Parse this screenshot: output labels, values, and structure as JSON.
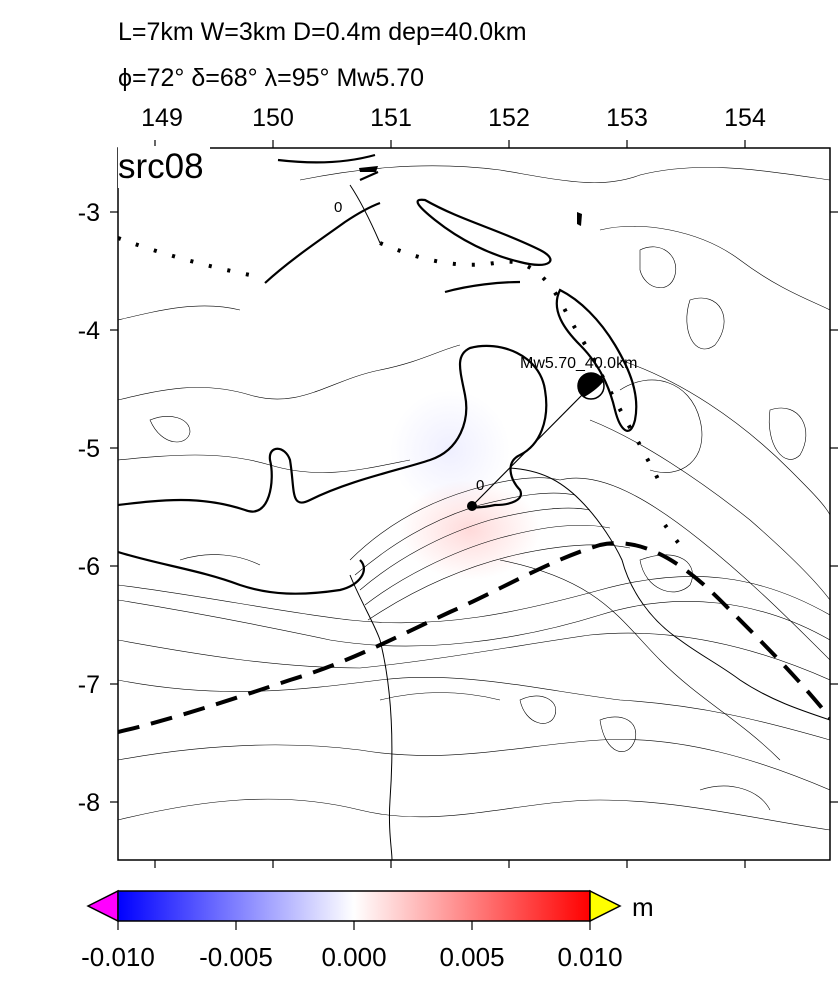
{
  "title": {
    "line1": "L=7km W=3km D=0.4m dep=40.0km",
    "line2": "ϕ=72° δ=68° λ=95° Mw5.70"
  },
  "map": {
    "panel_label": "src08",
    "lon_ticks": [
      "149",
      "150",
      "151",
      "152",
      "153",
      "154"
    ],
    "lat_ticks": [
      "-3",
      "-4",
      "-5",
      "-6",
      "-7",
      "-8"
    ],
    "lon_range": [
      148.7,
      154.7
    ],
    "lat_range": [
      -8.5,
      -2.6
    ],
    "contour_labels": [
      "0",
      "0"
    ],
    "event": {
      "label": "Mw5.70_40.0km",
      "lon": 152.7,
      "lat": -4.5,
      "epicenter_lon": 151.7,
      "epicenter_lat": -5.5,
      "mechanism": "reverse"
    }
  },
  "colorbar": {
    "unit": "m",
    "ticks": [
      "-0.010",
      "-0.005",
      "0.000",
      "0.005",
      "0.010"
    ],
    "range": [
      -0.01,
      0.01
    ],
    "colors": {
      "low_extension": "#ff00ff",
      "low": "#0000ff",
      "mid": "#ffffff",
      "high": "#ff0000",
      "high_extension": "#ffff00"
    }
  }
}
